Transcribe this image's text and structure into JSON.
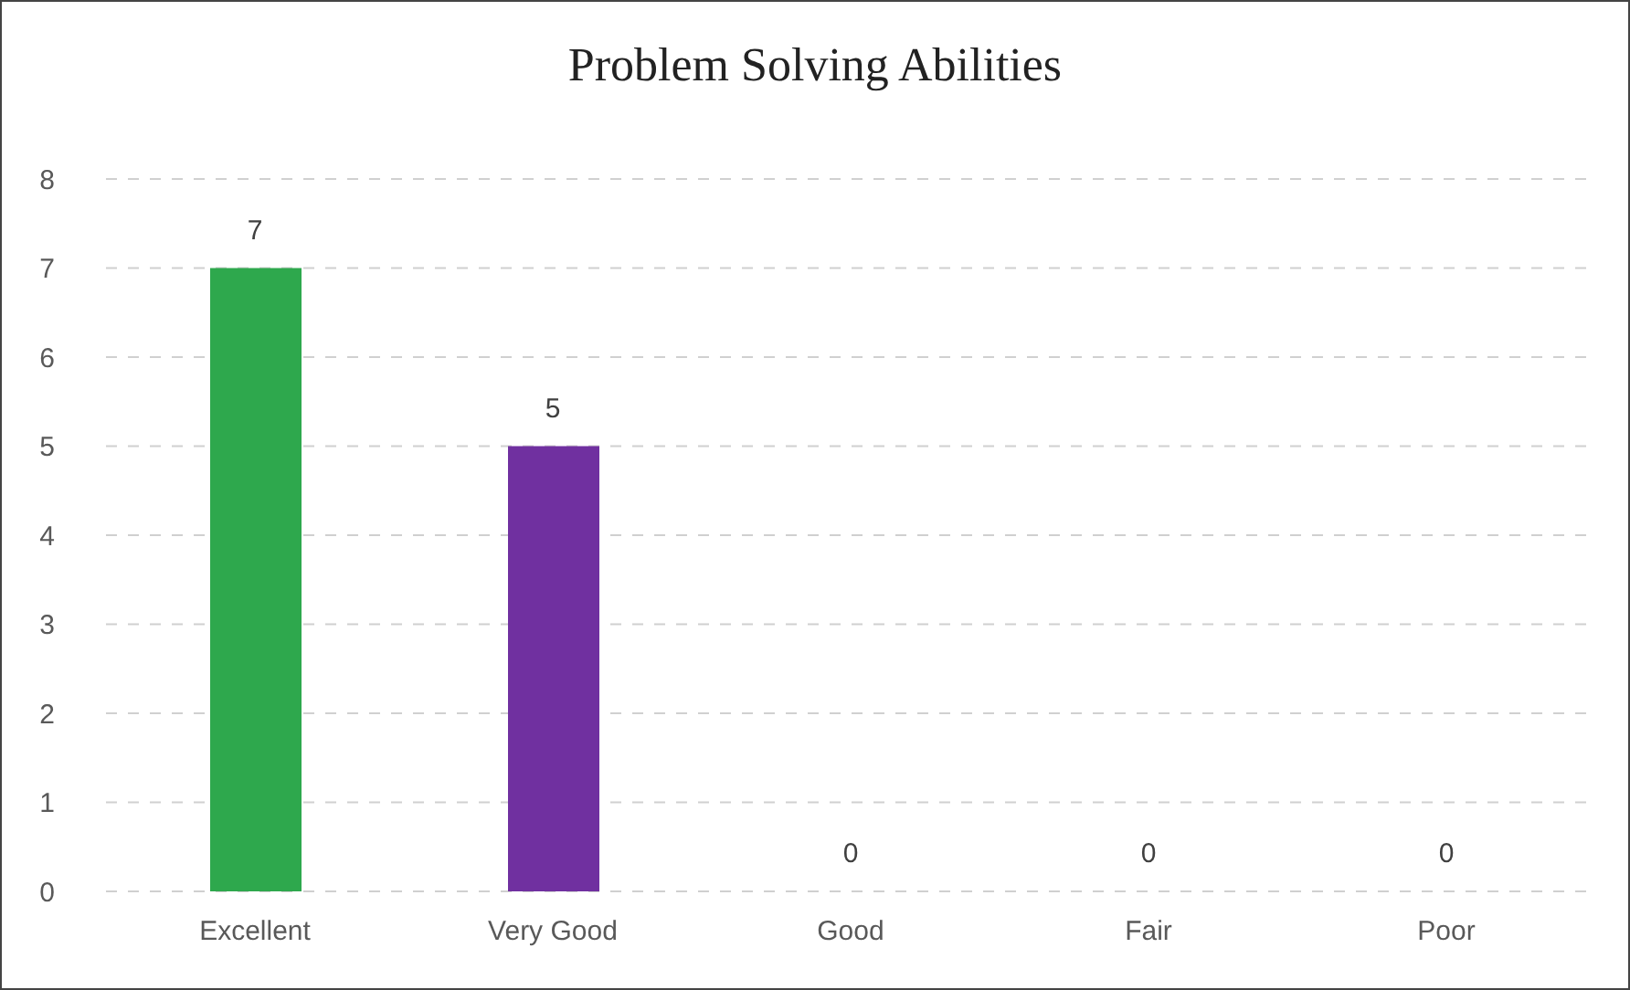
{
  "chart_data": {
    "type": "bar",
    "title": "Problem Solving Abilities",
    "categories": [
      "Excellent",
      "Very Good",
      "Good",
      "Fair",
      "Poor"
    ],
    "values": [
      7,
      5,
      0,
      0,
      0
    ],
    "colors": [
      "#2ea84d",
      "#7030a0",
      "#7030a0",
      "#7030a0",
      "#7030a0"
    ],
    "ylim": [
      0,
      8
    ],
    "yticks": [
      0,
      1,
      2,
      3,
      4,
      5,
      6,
      7,
      8
    ],
    "grid": "y",
    "data_labels": true
  }
}
